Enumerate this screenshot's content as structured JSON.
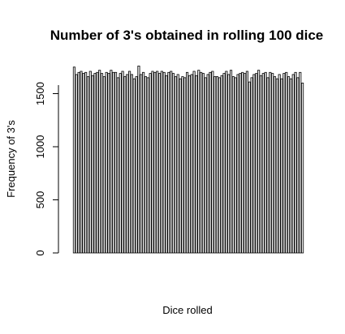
{
  "chart_data": {
    "type": "bar",
    "title": "Number of 3's obtained in rolling 100 dice",
    "xlabel": "Dice rolled",
    "ylabel": "Frequency of 3's",
    "ylim": [
      0,
      1760
    ],
    "yticks": [
      0,
      500,
      1000,
      1500
    ],
    "ytick_labels": [
      "0",
      "500",
      "1000",
      "1500"
    ],
    "grid": false,
    "legend": "none",
    "bar_fill": "#e8e8e8",
    "bar_stroke": "#000000",
    "values": [
      1750,
      1680,
      1700,
      1710,
      1690,
      1700,
      1660,
      1710,
      1670,
      1690,
      1700,
      1720,
      1690,
      1660,
      1700,
      1690,
      1720,
      1700,
      1700,
      1650,
      1690,
      1710,
      1660,
      1680,
      1710,
      1680,
      1640,
      1660,
      1760,
      1680,
      1700,
      1660,
      1650,
      1690,
      1710,
      1700,
      1710,
      1690,
      1710,
      1700,
      1670,
      1700,
      1710,
      1690,
      1660,
      1680,
      1640,
      1660,
      1650,
      1700,
      1670,
      1680,
      1710,
      1670,
      1720,
      1700,
      1690,
      1650,
      1680,
      1700,
      1710,
      1660,
      1660,
      1650,
      1670,
      1690,
      1710,
      1680,
      1720,
      1660,
      1650,
      1680,
      1690,
      1700,
      1690,
      1710,
      1610,
      1650,
      1680,
      1690,
      1720,
      1670,
      1690,
      1700,
      1650,
      1700,
      1690,
      1660,
      1640,
      1680,
      1640,
      1690,
      1700,
      1660,
      1640,
      1680,
      1700,
      1650,
      1700,
      1600
    ]
  }
}
